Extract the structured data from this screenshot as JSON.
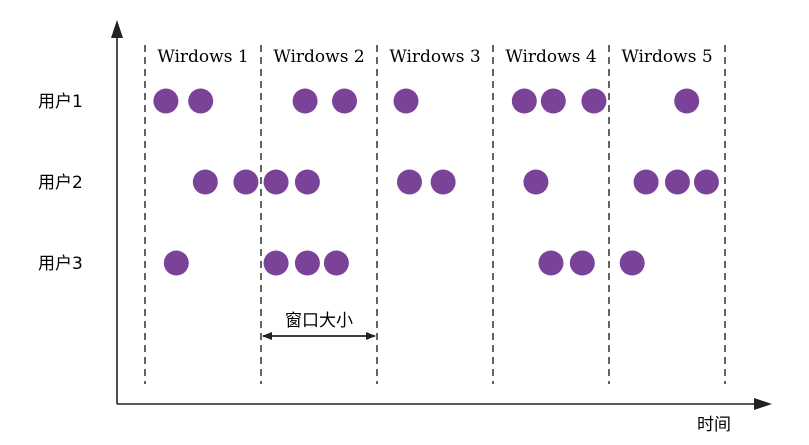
{
  "colors": {
    "dot": "#7b4398",
    "line": "#222222",
    "background": "#ffffff"
  },
  "windows": [
    {
      "label": "Wirdows 1"
    },
    {
      "label": "Wirdows 2"
    },
    {
      "label": "Wirdows 3"
    },
    {
      "label": "Wirdows 4"
    },
    {
      "label": "Wirdows 5"
    }
  ],
  "rows": [
    {
      "label": "用户1",
      "events": [
        0.18,
        0.48,
        1.38,
        1.72,
        2.25,
        3.27,
        3.52,
        3.87,
        4.67
      ]
    },
    {
      "label": "用户2",
      "events": [
        0.52,
        0.87,
        1.13,
        1.4,
        2.28,
        2.57,
        3.37,
        4.32,
        4.59,
        4.84
      ]
    },
    {
      "label": "用户3",
      "events": [
        0.27,
        1.13,
        1.4,
        1.65,
        3.5,
        3.77,
        4.2
      ]
    }
  ],
  "annotation": {
    "label": "窗口大小",
    "from_boundary": 1,
    "to_boundary": 2
  },
  "axis": {
    "x_label": "时间"
  }
}
